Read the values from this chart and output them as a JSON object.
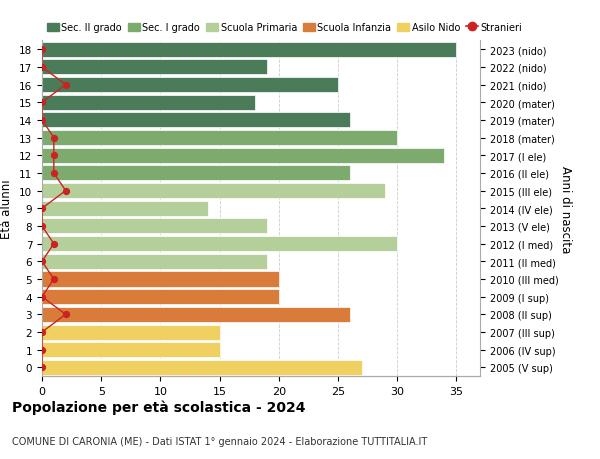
{
  "ages": [
    18,
    17,
    16,
    15,
    14,
    13,
    12,
    11,
    10,
    9,
    8,
    7,
    6,
    5,
    4,
    3,
    2,
    1,
    0
  ],
  "right_labels": [
    "2005 (V sup)",
    "2006 (IV sup)",
    "2007 (III sup)",
    "2008 (II sup)",
    "2009 (I sup)",
    "2010 (III med)",
    "2011 (II med)",
    "2012 (I med)",
    "2013 (V ele)",
    "2014 (IV ele)",
    "2015 (III ele)",
    "2016 (II ele)",
    "2017 (I ele)",
    "2018 (mater)",
    "2019 (mater)",
    "2020 (mater)",
    "2021 (nido)",
    "2022 (nido)",
    "2023 (nido)"
  ],
  "bar_values": [
    35,
    19,
    25,
    18,
    26,
    30,
    34,
    26,
    29,
    14,
    19,
    30,
    19,
    20,
    20,
    26,
    15,
    15,
    27
  ],
  "bar_colors": [
    "#4a7c59",
    "#4a7c59",
    "#4a7c59",
    "#4a7c59",
    "#4a7c59",
    "#7dab6e",
    "#7dab6e",
    "#7dab6e",
    "#b5cf9b",
    "#b5cf9b",
    "#b5cf9b",
    "#b5cf9b",
    "#b5cf9b",
    "#d97c3a",
    "#d97c3a",
    "#d97c3a",
    "#f0d060",
    "#f0d060",
    "#f0d060"
  ],
  "stranieri_values": [
    0,
    0,
    2,
    0,
    0,
    1,
    1,
    1,
    2,
    0,
    0,
    1,
    0,
    1,
    0,
    2,
    0,
    0,
    0
  ],
  "title": "Popolazione per età scolastica - 2024",
  "subtitle": "COMUNE DI CARONIA (ME) - Dati ISTAT 1° gennaio 2024 - Elaborazione TUTTITALIA.IT",
  "ylabel": "Età alunni",
  "ylabel_right": "Anni di nascita",
  "xlim": [
    0,
    37
  ],
  "xticks": [
    0,
    5,
    10,
    15,
    20,
    25,
    30,
    35
  ],
  "bg_color": "#ffffff",
  "grid_color": "#cccccc",
  "legend_items": [
    {
      "label": "Sec. II grado",
      "color": "#4a7c59"
    },
    {
      "label": "Sec. I grado",
      "color": "#7dab6e"
    },
    {
      "label": "Scuola Primaria",
      "color": "#b5cf9b"
    },
    {
      "label": "Scuola Infanzia",
      "color": "#d97c3a"
    },
    {
      "label": "Asilo Nido",
      "color": "#f0d060"
    },
    {
      "label": "Stranieri",
      "color": "#cc2222"
    }
  ]
}
